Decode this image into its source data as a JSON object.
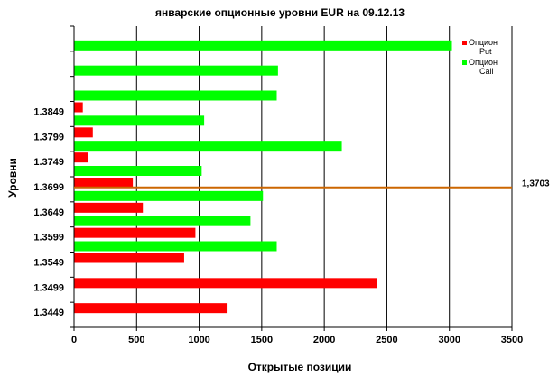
{
  "chart_data": {
    "type": "bar",
    "orientation": "horizontal",
    "title": "январские опционные  уровни  EUR на 09.12.13",
    "xlabel": "Открытые позиции",
    "ylabel": "Уровни",
    "xlim": [
      0,
      3500
    ],
    "xticks": [
      0,
      500,
      1000,
      1500,
      2000,
      2500,
      3000,
      3500
    ],
    "grid": "vertical",
    "legend_position": "top-right",
    "categories": [
      "1.3449",
      "1.3499",
      "1.3549",
      "1.3599",
      "1.3649",
      "1.3699",
      "1.3749",
      "1.3799",
      "1.3849",
      "",
      "",
      ""
    ],
    "series": [
      {
        "name": "Опцион Put",
        "legend_lines": [
          "Опцион",
          "Put"
        ],
        "color": "#ff0000",
        "values": [
          1220,
          2420,
          880,
          970,
          550,
          470,
          110,
          150,
          70,
          0,
          0,
          0
        ]
      },
      {
        "name": "Опцион Call",
        "legend_lines": [
          "Опцион",
          "Call"
        ],
        "color": "#00ff00",
        "values": [
          0,
          0,
          0,
          1620,
          1410,
          1510,
          1020,
          2140,
          1040,
          1620,
          1630,
          3020
        ]
      }
    ],
    "reference_line": {
      "level": 1.3703,
      "label": "1,3703",
      "color": "#cc6600"
    }
  }
}
